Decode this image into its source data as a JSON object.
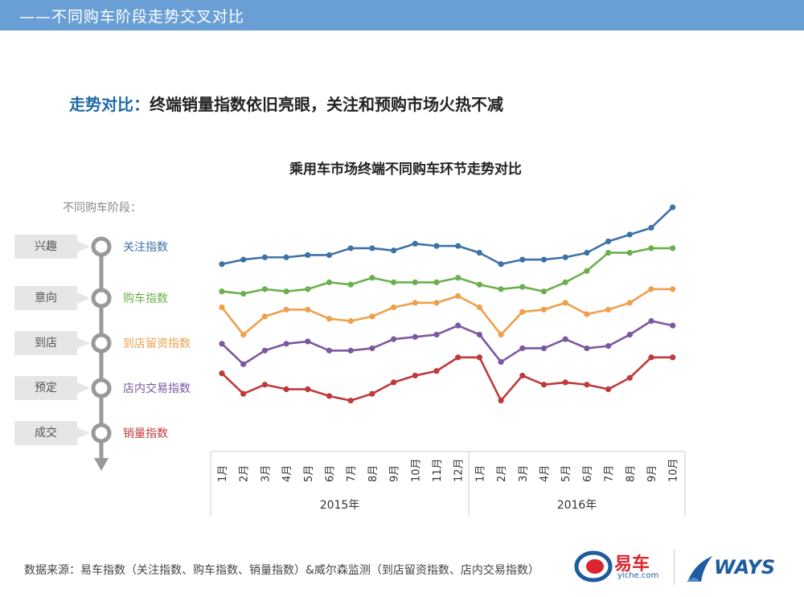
{
  "header": {
    "title": "——不同购车阶段走势交叉对比"
  },
  "headline": {
    "lead": "走势对比：",
    "text": "终端销量指数依旧亮眼，关注和预购市场火热不减"
  },
  "stage_caption": "不同购车阶段：",
  "stages": [
    "兴趣",
    "意向",
    "到店",
    "预定",
    "成交"
  ],
  "source": "数据来源：易车指数（关注指数、购车指数、销量指数）&威尔森监测（到店留资指数、店内交易指数）",
  "logos": {
    "yiche_name": "易车",
    "yiche_domain": "yiche.com",
    "ways": "WAYS"
  },
  "colors": {
    "关注指数": "#3d72a6",
    "购车指数": "#6ab04c",
    "到店留资指数": "#eea04a",
    "店内交易指数": "#7b58a0",
    "销量指数": "#c0393b"
  },
  "chart_data": {
    "type": "line",
    "title": "乘用车市场终端不同购车环节走势对比",
    "categories": [
      "1月",
      "2月",
      "3月",
      "4月",
      "5月",
      "6月",
      "7月",
      "8月",
      "9月",
      "10月",
      "11月",
      "12月",
      "1月",
      "2月",
      "3月",
      "4月",
      "5月",
      "6月",
      "7月",
      "8月",
      "9月",
      "10月"
    ],
    "year_groups": [
      {
        "label": "2015年",
        "count": 12
      },
      {
        "label": "2016年",
        "count": 10
      }
    ],
    "ylim": [
      0,
      100
    ],
    "grid": false,
    "legend": "left",
    "series": [
      {
        "name": "关注指数",
        "values": [
          75,
          77,
          78,
          78,
          79,
          79,
          82,
          82,
          81,
          84,
          83,
          83,
          80,
          75,
          77,
          77,
          78,
          80,
          85,
          88,
          91,
          100
        ]
      },
      {
        "name": "购车指数",
        "values": [
          63,
          62,
          64,
          63,
          64,
          67,
          66,
          69,
          67,
          67,
          67,
          69,
          66,
          64,
          65,
          63,
          67,
          72,
          80,
          80,
          82,
          82
        ]
      },
      {
        "name": "到店留资指数",
        "values": [
          56,
          44,
          52,
          55,
          55,
          51,
          50,
          52,
          56,
          58,
          58,
          61,
          56,
          44,
          54,
          55,
          58,
          53,
          55,
          58,
          64,
          64
        ]
      },
      {
        "name": "店内交易指数",
        "values": [
          40,
          31,
          37,
          40,
          41,
          37,
          37,
          38,
          42,
          43,
          44,
          48,
          44,
          32,
          38,
          38,
          42,
          38,
          39,
          44,
          50,
          48
        ]
      },
      {
        "name": "销量指数",
        "values": [
          27,
          18,
          22,
          20,
          20,
          17,
          15,
          18,
          23,
          26,
          28,
          34,
          34,
          15,
          26,
          22,
          23,
          22,
          20,
          25,
          34,
          34
        ]
      }
    ]
  }
}
